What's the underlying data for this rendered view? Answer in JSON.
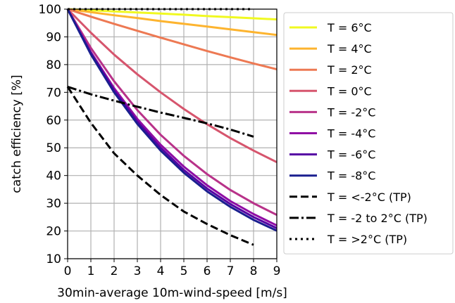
{
  "chart_data": {
    "type": "line",
    "xlabel": "30min-average 10m-wind-speed [m/s]",
    "ylabel": "catch efficiency [%]",
    "xlim": [
      0,
      9
    ],
    "ylim": [
      10,
      100
    ],
    "xticks": [
      0,
      1,
      2,
      3,
      4,
      5,
      6,
      7,
      8,
      9
    ],
    "yticks": [
      10,
      20,
      30,
      40,
      50,
      60,
      70,
      80,
      90,
      100
    ],
    "grid": true,
    "legend_position": "right",
    "series": [
      {
        "name": "T = 6°C",
        "color": "#f0f921",
        "style": "solid",
        "x": [
          0,
          1,
          2,
          3,
          4,
          5,
          6,
          7,
          8,
          9
        ],
        "y": [
          100,
          99.6,
          99.2,
          98.8,
          98.4,
          98.0,
          97.5,
          97.1,
          96.7,
          96.3
        ]
      },
      {
        "name": "T = 4°C",
        "color": "#fdb42f",
        "style": "solid",
        "x": [
          0,
          1,
          2,
          3,
          4,
          5,
          6,
          7,
          8,
          9
        ],
        "y": [
          100,
          98.9,
          97.8,
          96.8,
          95.7,
          94.7,
          93.7,
          92.7,
          91.7,
          90.7
        ]
      },
      {
        "name": "T = 2°C",
        "color": "#ed7953",
        "style": "solid",
        "x": [
          0,
          1,
          2,
          3,
          4,
          5,
          6,
          7,
          8,
          9
        ],
        "y": [
          100,
          97.3,
          94.7,
          92.2,
          89.7,
          87.3,
          84.9,
          82.6,
          80.4,
          78.3
        ]
      },
      {
        "name": "T = 0°C",
        "color": "#d6556d",
        "style": "solid",
        "x": [
          0,
          1,
          2,
          3,
          4,
          5,
          6,
          7,
          8,
          9
        ],
        "y": [
          100,
          91.5,
          83.6,
          76.5,
          70.0,
          64.0,
          58.5,
          53.5,
          49.0,
          44.8
        ]
      },
      {
        "name": "T = -2°C",
        "color": "#b83289",
        "style": "solid",
        "x": [
          0,
          1,
          2,
          3,
          4,
          5,
          6,
          7,
          8,
          9
        ],
        "y": [
          100,
          86.0,
          74.0,
          63.6,
          54.7,
          47.1,
          40.5,
          34.8,
          30.0,
          25.8
        ]
      },
      {
        "name": "T = -4°C",
        "color": "#8f0da4",
        "style": "solid",
        "x": [
          0,
          1,
          2,
          3,
          4,
          5,
          6,
          7,
          8,
          9
        ],
        "y": [
          100,
          84.5,
          71.5,
          60.4,
          51.1,
          43.2,
          36.5,
          30.8,
          26.1,
          22.0
        ]
      },
      {
        "name": "T = -6°C",
        "color": "#5402a3",
        "style": "solid",
        "x": [
          0,
          1,
          2,
          3,
          4,
          5,
          6,
          7,
          8,
          9
        ],
        "y": [
          100,
          84.1,
          70.7,
          59.4,
          50.0,
          42.0,
          35.3,
          29.7,
          25.0,
          21.0
        ]
      },
      {
        "name": "T = -8°C",
        "color": "#1a1f8f",
        "style": "solid",
        "x": [
          0,
          1,
          2,
          3,
          4,
          5,
          6,
          7,
          8,
          9
        ],
        "y": [
          100,
          83.7,
          70.0,
          58.6,
          49.0,
          41.0,
          34.3,
          28.7,
          24.0,
          20.1
        ]
      },
      {
        "name": "T = <-2°C (TP)",
        "color": "#000000",
        "style": "dashed",
        "x": [
          0,
          1,
          2,
          3,
          4,
          5,
          6,
          7,
          8
        ],
        "y": [
          72,
          59,
          48,
          40,
          33,
          27,
          22.5,
          18.5,
          15
        ]
      },
      {
        "name": "T = -2 to 2°C (TP)",
        "color": "#000000",
        "style": "dashdot",
        "x": [
          0,
          1,
          2,
          3,
          4,
          5,
          6,
          7,
          8
        ],
        "y": [
          72,
          69.3,
          67,
          64.8,
          62.7,
          60.8,
          58.8,
          56.6,
          54
        ]
      },
      {
        "name": "T = >2°C (TP)",
        "color": "#000000",
        "style": "dotted",
        "x": [
          0,
          8
        ],
        "y": [
          100,
          100
        ]
      }
    ]
  }
}
